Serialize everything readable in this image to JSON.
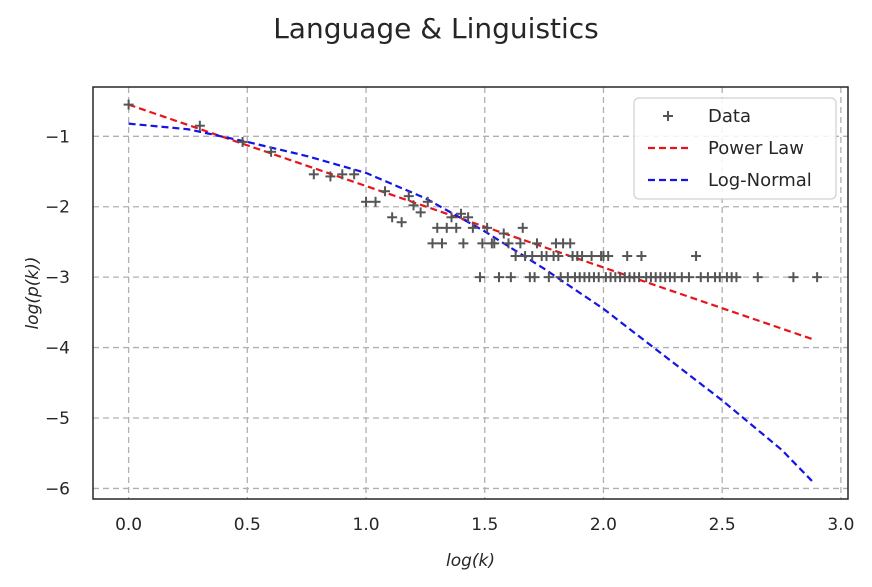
{
  "chart_data": {
    "type": "scatter",
    "title": "Language & Linguistics",
    "xlabel": "log(k)",
    "ylabel": "log(p(k))",
    "xlim": [
      -0.15,
      3.03
    ],
    "ylim": [
      -6.15,
      -0.3
    ],
    "xticks": [
      0.0,
      0.5,
      1.0,
      1.5,
      2.0,
      2.5,
      3.0
    ],
    "xtick_labels": [
      "0.0",
      "0.5",
      "1.0",
      "1.5",
      "2.0",
      "2.5",
      "3.0"
    ],
    "yticks": [
      -1,
      -2,
      -3,
      -4,
      -5,
      -6
    ],
    "ytick_labels": [
      "−1",
      "−2",
      "−3",
      "−4",
      "−5",
      "−6"
    ],
    "grid": true,
    "legend_position": "top-right",
    "series": [
      {
        "name": "Data",
        "kind": "scatter",
        "marker": "plus",
        "color": "#555555",
        "points": [
          [
            0.0,
            -0.55
          ],
          [
            0.3,
            -0.85
          ],
          [
            0.48,
            -1.08
          ],
          [
            0.6,
            -1.22
          ],
          [
            0.78,
            -1.54
          ],
          [
            0.85,
            -1.57
          ],
          [
            0.9,
            -1.54
          ],
          [
            0.95,
            -1.54
          ],
          [
            1.0,
            -1.93
          ],
          [
            1.04,
            -1.93
          ],
          [
            1.08,
            -1.78
          ],
          [
            1.11,
            -2.15
          ],
          [
            1.15,
            -2.22
          ],
          [
            1.18,
            -1.85
          ],
          [
            1.2,
            -1.98
          ],
          [
            1.23,
            -2.08
          ],
          [
            1.26,
            -1.93
          ],
          [
            1.28,
            -2.52
          ],
          [
            1.3,
            -2.3
          ],
          [
            1.32,
            -2.52
          ],
          [
            1.34,
            -2.3
          ],
          [
            1.36,
            -2.15
          ],
          [
            1.38,
            -2.3
          ],
          [
            1.4,
            -2.1
          ],
          [
            1.41,
            -2.52
          ],
          [
            1.43,
            -2.15
          ],
          [
            1.45,
            -2.3
          ],
          [
            1.48,
            -3.0
          ],
          [
            1.49,
            -2.52
          ],
          [
            1.51,
            -2.3
          ],
          [
            1.53,
            -2.52
          ],
          [
            1.54,
            -2.52
          ],
          [
            1.56,
            -3.0
          ],
          [
            1.58,
            -2.38
          ],
          [
            1.6,
            -2.52
          ],
          [
            1.61,
            -3.0
          ],
          [
            1.63,
            -2.7
          ],
          [
            1.65,
            -2.52
          ],
          [
            1.66,
            -2.3
          ],
          [
            1.67,
            -2.7
          ],
          [
            1.69,
            -3.0
          ],
          [
            1.7,
            -2.7
          ],
          [
            1.71,
            -3.0
          ],
          [
            1.72,
            -2.52
          ],
          [
            1.74,
            -2.7
          ],
          [
            1.76,
            -2.7
          ],
          [
            1.77,
            -3.0
          ],
          [
            1.79,
            -2.7
          ],
          [
            1.8,
            -2.52
          ],
          [
            1.81,
            -2.7
          ],
          [
            1.82,
            -3.0
          ],
          [
            1.83,
            -2.52
          ],
          [
            1.85,
            -3.0
          ],
          [
            1.86,
            -2.52
          ],
          [
            1.87,
            -2.7
          ],
          [
            1.88,
            -3.0
          ],
          [
            1.89,
            -2.7
          ],
          [
            1.9,
            -3.0
          ],
          [
            1.91,
            -2.7
          ],
          [
            1.92,
            -3.0
          ],
          [
            1.94,
            -3.0
          ],
          [
            1.95,
            -2.7
          ],
          [
            1.96,
            -3.0
          ],
          [
            1.98,
            -3.0
          ],
          [
            1.99,
            -2.7
          ],
          [
            2.0,
            -2.7
          ],
          [
            2.01,
            -3.0
          ],
          [
            2.02,
            -2.7
          ],
          [
            2.03,
            -3.0
          ],
          [
            2.05,
            -3.0
          ],
          [
            2.07,
            -3.0
          ],
          [
            2.09,
            -3.0
          ],
          [
            2.1,
            -2.7
          ],
          [
            2.11,
            -3.0
          ],
          [
            2.13,
            -3.0
          ],
          [
            2.15,
            -3.0
          ],
          [
            2.16,
            -2.7
          ],
          [
            2.18,
            -3.0
          ],
          [
            2.2,
            -3.0
          ],
          [
            2.22,
            -3.0
          ],
          [
            2.24,
            -3.0
          ],
          [
            2.26,
            -3.0
          ],
          [
            2.28,
            -3.0
          ],
          [
            2.3,
            -3.0
          ],
          [
            2.33,
            -3.0
          ],
          [
            2.36,
            -3.0
          ],
          [
            2.39,
            -2.7
          ],
          [
            2.41,
            -3.0
          ],
          [
            2.44,
            -3.0
          ],
          [
            2.47,
            -3.0
          ],
          [
            2.49,
            -3.0
          ],
          [
            2.52,
            -3.0
          ],
          [
            2.54,
            -3.0
          ],
          [
            2.56,
            -3.0
          ],
          [
            2.65,
            -3.0
          ],
          [
            2.8,
            -3.0
          ],
          [
            2.9,
            -3.0
          ]
        ]
      },
      {
        "name": "Power Law",
        "kind": "line",
        "style": "dashed",
        "color": "#e8141a",
        "x": [
          0.0,
          2.88
        ],
        "y": [
          -0.55,
          -3.88
        ]
      },
      {
        "name": "Log-Normal",
        "kind": "line",
        "style": "dashed",
        "color": "#1414e8",
        "x": [
          0.0,
          0.25,
          0.5,
          0.75,
          1.0,
          1.25,
          1.5,
          1.75,
          2.0,
          2.25,
          2.5,
          2.75,
          2.88
        ],
        "y": [
          -0.82,
          -0.9,
          -1.08,
          -1.28,
          -1.52,
          -1.88,
          -2.35,
          -2.88,
          -3.45,
          -4.1,
          -4.75,
          -5.45,
          -5.9
        ]
      }
    ]
  }
}
